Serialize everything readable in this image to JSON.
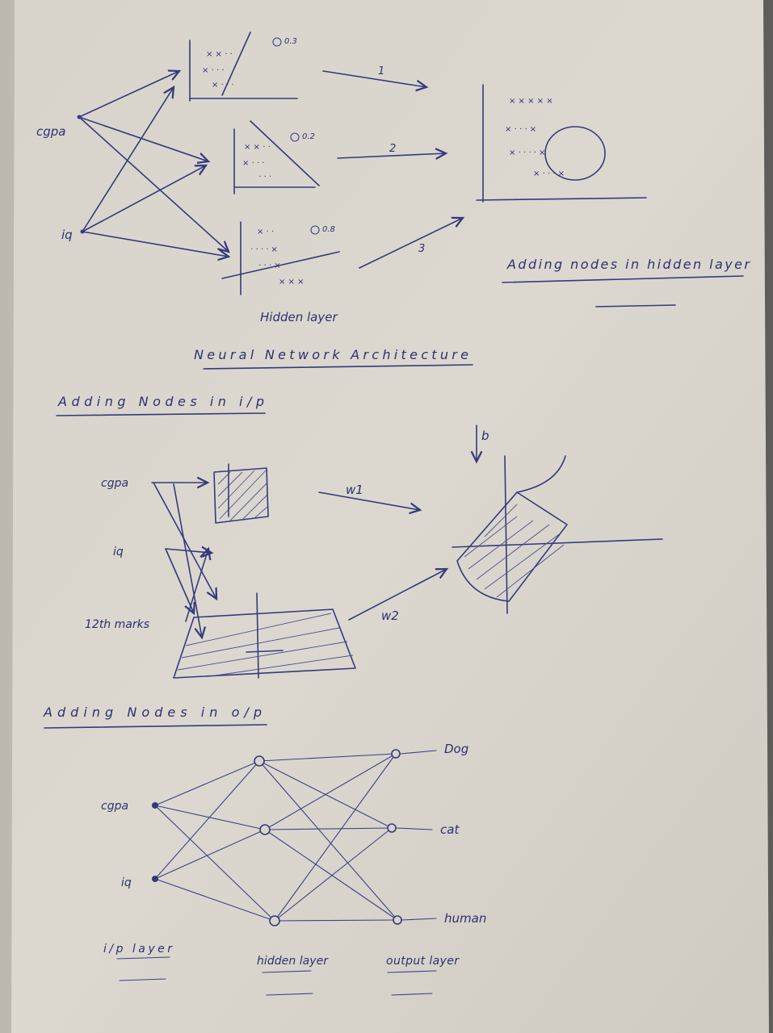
{
  "diagram1": {
    "inputs": [
      "cgpa",
      "iq"
    ],
    "sub_values": [
      "0.3",
      "0.2",
      "0.8"
    ],
    "arrow_labels": [
      "1",
      "2",
      "3"
    ],
    "hidden_caption": "Hidden layer",
    "side_title": "Adding nodes in hidden layer",
    "main_title": "Neural Network Architecture"
  },
  "diagram2": {
    "heading": "Adding Nodes in i/p",
    "inputs": [
      "cgpa",
      "iq",
      "12th marks"
    ],
    "weights": [
      "w1",
      "w2"
    ],
    "bias": "b"
  },
  "diagram3": {
    "heading": "Adding Nodes in o/p",
    "inputs": [
      "cgpa",
      "iq"
    ],
    "outputs": [
      "Dog",
      "cat",
      "human"
    ],
    "layer_labels": [
      "i/p layer",
      "hidden layer",
      "output layer"
    ]
  }
}
